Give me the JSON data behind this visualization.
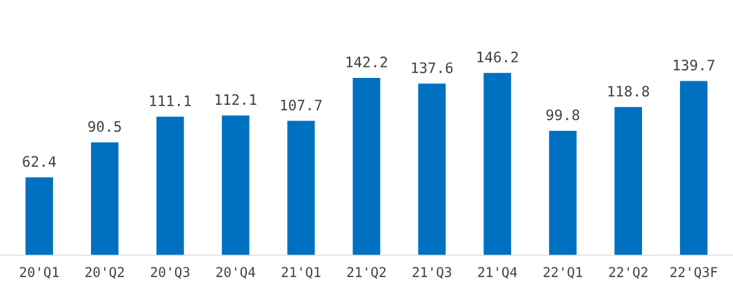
{
  "chart_data": {
    "type": "bar",
    "categories": [
      "20'Q1",
      "20'Q2",
      "20'Q3",
      "20'Q4",
      "21'Q1",
      "21'Q2",
      "21'Q3",
      "21'Q4",
      "22'Q1",
      "22'Q2",
      "22'Q3F"
    ],
    "values": [
      62.4,
      90.5,
      111.1,
      112.1,
      107.7,
      142.2,
      137.6,
      146.2,
      99.8,
      118.8,
      139.7
    ],
    "color": "#0070c0",
    "data_labels": true,
    "grid": false,
    "legend": false
  }
}
